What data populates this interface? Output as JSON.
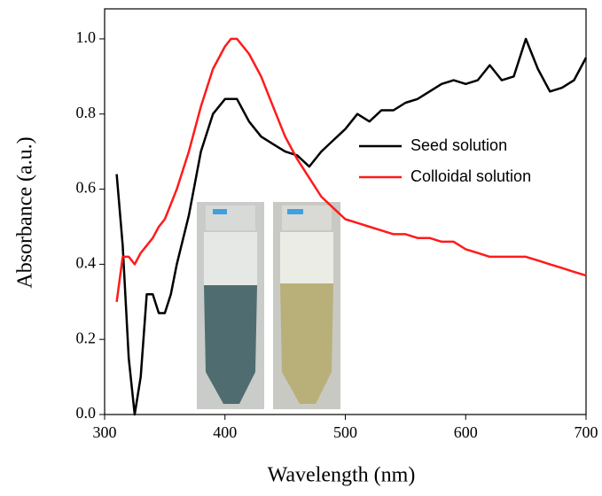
{
  "chart_data": {
    "type": "line",
    "xlabel": "Wavelength (nm)",
    "ylabel": "Absorbance (a.u.)",
    "x": [
      310,
      315,
      320,
      325,
      330,
      335,
      340,
      345,
      350,
      355,
      360,
      370,
      380,
      390,
      400,
      405,
      410,
      420,
      430,
      440,
      450,
      460,
      470,
      480,
      490,
      500,
      510,
      520,
      530,
      540,
      550,
      560,
      570,
      580,
      590,
      600,
      610,
      620,
      630,
      640,
      650,
      660,
      670,
      680,
      690,
      700
    ],
    "series": [
      {
        "name": "Seed solution",
        "color": "#000000",
        "values": [
          0.64,
          0.45,
          0.15,
          0.0,
          0.1,
          0.32,
          0.32,
          0.27,
          0.27,
          0.32,
          0.4,
          0.53,
          0.7,
          0.8,
          0.84,
          0.84,
          0.84,
          0.78,
          0.74,
          0.72,
          0.7,
          0.69,
          0.66,
          0.7,
          0.73,
          0.76,
          0.8,
          0.78,
          0.81,
          0.81,
          0.83,
          0.84,
          0.86,
          0.88,
          0.89,
          0.88,
          0.89,
          0.93,
          0.89,
          0.9,
          1.0,
          0.92,
          0.86,
          0.87,
          0.89,
          0.95
        ]
      },
      {
        "name": "Colloidal solution",
        "color": "#ff1a1a",
        "values": [
          0.3,
          0.42,
          0.42,
          0.4,
          0.43,
          0.45,
          0.47,
          0.5,
          0.52,
          0.56,
          0.6,
          0.7,
          0.82,
          0.92,
          0.98,
          1.0,
          1.0,
          0.96,
          0.9,
          0.82,
          0.74,
          0.68,
          0.63,
          0.58,
          0.55,
          0.52,
          0.51,
          0.5,
          0.49,
          0.48,
          0.48,
          0.47,
          0.47,
          0.46,
          0.46,
          0.44,
          0.43,
          0.42,
          0.42,
          0.42,
          0.42,
          0.41,
          0.4,
          0.39,
          0.38,
          0.37
        ]
      }
    ],
    "xlim": [
      300,
      700
    ],
    "xticks": [
      300,
      400,
      500,
      600,
      700
    ],
    "ylim": [
      0,
      1.08
    ],
    "yticks": [
      {
        "value": 0,
        "label": "0.0"
      },
      0.2,
      0.4,
      0.6,
      0.8,
      {
        "value": 1,
        "label": "1.0"
      }
    ],
    "legend": "right"
  }
}
